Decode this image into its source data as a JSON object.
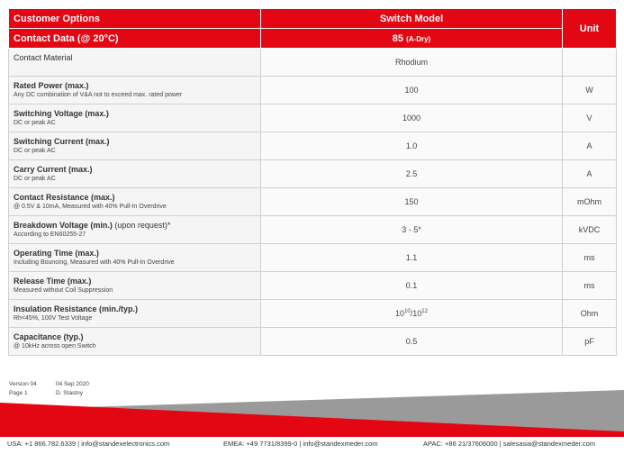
{
  "header": {
    "options_label": "Customer Options",
    "switch_model_label": "Switch Model",
    "unit_label": "Unit",
    "contact_data_label": "Contact Data (@ 20°C)",
    "model_value": "85",
    "model_sub": "(A-Dry)"
  },
  "rows": [
    {
      "name": "Contact Material",
      "note": "",
      "value": "Rhodium",
      "unit": ""
    },
    {
      "name": "Rated Power (max.)",
      "note": "Any DC combination of V&A not to exceed max. rated power",
      "value": "100",
      "unit": "W"
    },
    {
      "name": "Switching Voltage (max.)",
      "note": "DC or peak AC",
      "value": "1000",
      "unit": "V"
    },
    {
      "name": "Switching Current (max.)",
      "note": "DC or peak AC",
      "value": "1.0",
      "unit": "A"
    },
    {
      "name": "Carry Current (max.)",
      "note": "DC or peak AC",
      "value": "2.5",
      "unit": "A"
    },
    {
      "name": "Contact Resistance (max.)",
      "note": "@ 0.5V & 10mA, Measured with 40% Pull-In Overdrive",
      "value": "150",
      "unit": "mOhm"
    },
    {
      "name": "Breakdown Voltage (min.)",
      "name_extra": " (upon request)*",
      "note": "According to EN60255-27",
      "value": "3 - 5*",
      "unit": "kVDC"
    },
    {
      "name": "Operating Time (max.)",
      "note": "Including Bouncing, Measured with 40% Pull-In Overdrive",
      "value": "1.1",
      "unit": "ms"
    },
    {
      "name": "Release Time (max.)",
      "note": "Measured without Coil Suppression",
      "value": "0.1",
      "unit": "ms"
    },
    {
      "name": "Insulation Resistance (min./typ.)",
      "note": "Rh<45%, 100V Test Voltage",
      "value_base1": "10",
      "value_exp1": "10",
      "value_sep": "/10",
      "value_exp2": "12",
      "unit": "Ohm"
    },
    {
      "name": "Capacitance (typ.)",
      "note": "@ 10kHz across open Switch",
      "value": "0.5",
      "unit": "pF"
    }
  ],
  "meta": {
    "version_label": "Version 04",
    "version_date": "04 Sep 2020",
    "page_label": "Page 1",
    "author": "D. Stastny"
  },
  "contacts": {
    "usa": "USA: +1 866.782.6339 | info@standexelectronics.com",
    "emea": "EMEA: +49 7731/8399-0 | info@standexmeder.com",
    "apac": "APAC: +86 21/37606000 | salesasia@standexmeder.com"
  },
  "colors": {
    "accent_red": "#e30613",
    "banner_gray": "#9a9a9a"
  }
}
